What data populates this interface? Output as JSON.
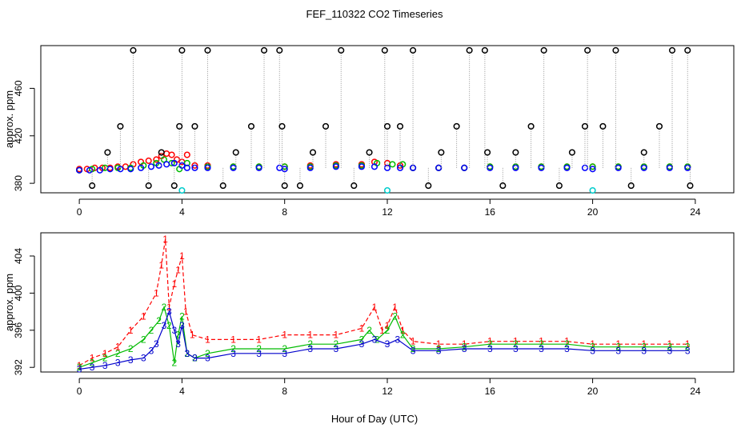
{
  "chart_data": {
    "title": "FEF_110322  CO2 Timeseries",
    "xlabel": "Hour of Day (UTC)",
    "panels": [
      {
        "id": "top",
        "type": "scatter",
        "ylabel": "approx. ppm",
        "xlim": [
          -1.5,
          25.5
        ],
        "ylim": [
          372,
          496
        ],
        "x_ticks": [
          0,
          4,
          8,
          12,
          16,
          20,
          24
        ],
        "y_ticks": [
          380,
          420,
          460
        ],
        "series": [
          {
            "marker": "o",
            "color": "#ff0000",
            "x": [
              0.0,
              0.3,
              0.6,
              0.9,
              1.2,
              1.5,
              1.8,
              2.1,
              2.4,
              2.7,
              3.0,
              3.2,
              3.4,
              3.6,
              3.8,
              4.0,
              4.2,
              4.5,
              5.0,
              6.0,
              7.0,
              8.0,
              9.0,
              10.0,
              11.0,
              11.5,
              12.0,
              12.5,
              13.0,
              14.0,
              15.0,
              16.0,
              17.0,
              18.0,
              19.0,
              20.0,
              21.0,
              22.0,
              23.0,
              23.7
            ],
            "y": [
              392,
              392,
              393,
              393,
              393,
              394,
              394,
              396,
              398,
              399,
              400,
              403,
              405,
              404,
              400,
              398,
              404,
              395,
              395,
              394,
              394,
              394,
              395,
              396,
              396,
              398,
              397,
              395,
              393,
              393,
              393,
              394,
              394,
              394,
              394,
              394,
              394,
              394,
              394,
              394
            ]
          },
          {
            "marker": "o",
            "color": "#00bb00",
            "x": [
              0.0,
              0.5,
              1.0,
              1.5,
              2.0,
              2.5,
              3.0,
              3.3,
              3.6,
              3.9,
              4.2,
              5.0,
              6.0,
              7.0,
              8.0,
              9.0,
              10.0,
              11.0,
              11.6,
              12.2,
              12.6,
              13.0,
              14.0,
              15.0,
              16.0,
              17.0,
              18.0,
              19.0,
              20.0,
              21.0,
              22.0,
              23.0,
              23.7
            ],
            "y": [
              391,
              392,
              393,
              393,
              393,
              395,
              397,
              400,
              397,
              392,
              397,
              394,
              394,
              394,
              394,
              394,
              395,
              395,
              397,
              396,
              396,
              393,
              393,
              393,
              394,
              394,
              394,
              394,
              394,
              394,
              394,
              394,
              394
            ]
          },
          {
            "marker": "o",
            "color": "#0000ff",
            "x": [
              0.0,
              0.4,
              0.8,
              1.2,
              1.6,
              2.0,
              2.4,
              2.8,
              3.1,
              3.4,
              3.7,
              4.0,
              4.2,
              4.5,
              5.0,
              6.0,
              7.0,
              7.8,
              8.0,
              9.0,
              10.0,
              11.0,
              11.5,
              12.0,
              12.5,
              13.0,
              14.0,
              15.0,
              16.0,
              17.0,
              18.0,
              19.0,
              19.7,
              20.0,
              21.0,
              22.0,
              23.0,
              23.7
            ],
            "y": [
              391,
              391,
              391,
              392,
              392,
              392,
              393,
              394,
              395,
              396,
              397,
              395,
              393,
              393,
              393,
              393,
              393,
              393,
              392,
              393,
              394,
              394,
              394,
              393,
              393,
              393,
              393,
              393,
              393,
              393,
              393,
              393,
              393,
              392,
              393,
              393,
              393,
              393
            ]
          },
          {
            "marker": "o",
            "color": "#000000",
            "x": [
              0.5,
              1.1,
              1.6,
              2.1,
              2.7,
              3.2,
              3.7,
              3.9,
              4.0,
              4.5,
              5.0,
              5.6,
              6.1,
              6.7,
              7.2,
              7.8,
              7.9,
              8.0,
              8.6,
              9.1,
              9.6,
              10.2,
              10.7,
              11.3,
              11.9,
              12.0,
              12.5,
              13.0,
              13.6,
              14.1,
              14.7,
              15.2,
              15.8,
              15.9,
              16.5,
              17.0,
              17.6,
              18.1,
              18.7,
              19.2,
              19.7,
              19.8,
              20.4,
              20.9,
              21.5,
              22.0,
              22.6,
              23.1,
              23.7,
              23.8
            ],
            "y": [
              378,
              406,
              428,
              492,
              378,
              406,
              378,
              428,
              492,
              428,
              492,
              378,
              406,
              428,
              492,
              492,
              428,
              378,
              378,
              406,
              428,
              492,
              378,
              406,
              492,
              428,
              428,
              492,
              378,
              406,
              428,
              492,
              492,
              406,
              378,
              406,
              428,
              492,
              378,
              406,
              428,
              492,
              428,
              492,
              378,
              406,
              428,
              492,
              492,
              378
            ]
          },
          {
            "marker": "o",
            "color": "#00cccc",
            "x": [
              4.0,
              12.0,
              20.0
            ],
            "y": [
              374,
              374,
              374
            ]
          }
        ]
      },
      {
        "id": "bottom",
        "type": "line",
        "ylabel": "approx. ppm",
        "xlim": [
          -1.5,
          25.5
        ],
        "ylim": [
          391.5,
          406.5
        ],
        "x_ticks": [
          0,
          4,
          8,
          12,
          16,
          20,
          24
        ],
        "y_ticks": [
          392,
          396,
          400,
          404
        ],
        "series": [
          {
            "marker": "1",
            "color": "#ff0000",
            "linestyle": "dashed",
            "x": [
              0.0,
              0.5,
              1.0,
              1.5,
              2.0,
              2.5,
              3.0,
              3.2,
              3.35,
              3.5,
              3.7,
              3.85,
              4.0,
              4.15,
              4.4,
              5.0,
              6.0,
              7.0,
              8.0,
              9.0,
              10.0,
              11.0,
              11.5,
              11.8,
              12.0,
              12.3,
              12.6,
              13.0,
              14.0,
              15.0,
              16.0,
              17.0,
              18.0,
              19.0,
              20.0,
              21.0,
              22.0,
              23.0,
              23.7
            ],
            "y": [
              392.2,
              393.0,
              393.5,
              394.2,
              396.0,
              397.5,
              400.0,
              403.0,
              405.8,
              398.5,
              401.0,
              402.5,
              404.0,
              398.0,
              395.5,
              395.0,
              395.0,
              395.0,
              395.5,
              395.5,
              395.5,
              396.2,
              398.5,
              396.0,
              396.5,
              398.5,
              396.0,
              394.8,
              394.5,
              394.5,
              394.8,
              394.8,
              394.8,
              394.8,
              394.5,
              394.5,
              394.5,
              394.5,
              394.5
            ]
          },
          {
            "marker": "2",
            "color": "#00bb00",
            "x": [
              0.0,
              0.5,
              1.0,
              1.5,
              2.0,
              2.5,
              2.8,
              3.1,
              3.3,
              3.5,
              3.7,
              3.85,
              4.0,
              4.2,
              4.5,
              5.0,
              6.0,
              7.0,
              8.0,
              9.0,
              10.0,
              11.0,
              11.3,
              11.6,
              12.0,
              12.3,
              12.6,
              13.0,
              14.0,
              15.0,
              16.0,
              17.0,
              18.0,
              19.0,
              20.0,
              21.0,
              22.0,
              23.0,
              23.7
            ],
            "y": [
              392.0,
              392.5,
              393.0,
              393.5,
              394.0,
              395.0,
              396.0,
              397.0,
              398.5,
              396.5,
              392.5,
              395.5,
              397.5,
              393.5,
              393.0,
              393.5,
              394.0,
              394.0,
              394.0,
              394.5,
              394.5,
              395.0,
              396.0,
              395.0,
              396.0,
              397.5,
              395.5,
              394.0,
              394.0,
              394.2,
              394.5,
              394.5,
              394.5,
              394.5,
              394.2,
              394.2,
              394.2,
              394.2,
              394.2
            ]
          },
          {
            "marker": "3",
            "color": "#0000cc",
            "x": [
              0.0,
              0.5,
              1.0,
              1.5,
              2.0,
              2.5,
              2.8,
              3.0,
              3.3,
              3.5,
              3.7,
              3.85,
              4.0,
              4.2,
              4.5,
              5.0,
              6.0,
              7.0,
              8.0,
              9.0,
              10.0,
              11.0,
              11.5,
              12.0,
              12.4,
              13.0,
              14.0,
              15.0,
              16.0,
              17.0,
              18.0,
              19.0,
              20.0,
              21.0,
              22.0,
              23.0,
              23.7
            ],
            "y": [
              391.8,
              392.0,
              392.2,
              392.5,
              392.8,
              393.0,
              393.8,
              394.5,
              396.5,
              398.0,
              396.0,
              394.5,
              396.5,
              393.5,
              393.0,
              393.0,
              393.5,
              393.5,
              393.5,
              394.0,
              394.0,
              394.5,
              395.0,
              394.5,
              395.0,
              393.8,
              393.8,
              394.0,
              394.0,
              394.0,
              394.0,
              394.0,
              393.8,
              393.8,
              393.8,
              393.8,
              393.8
            ]
          }
        ]
      }
    ]
  }
}
